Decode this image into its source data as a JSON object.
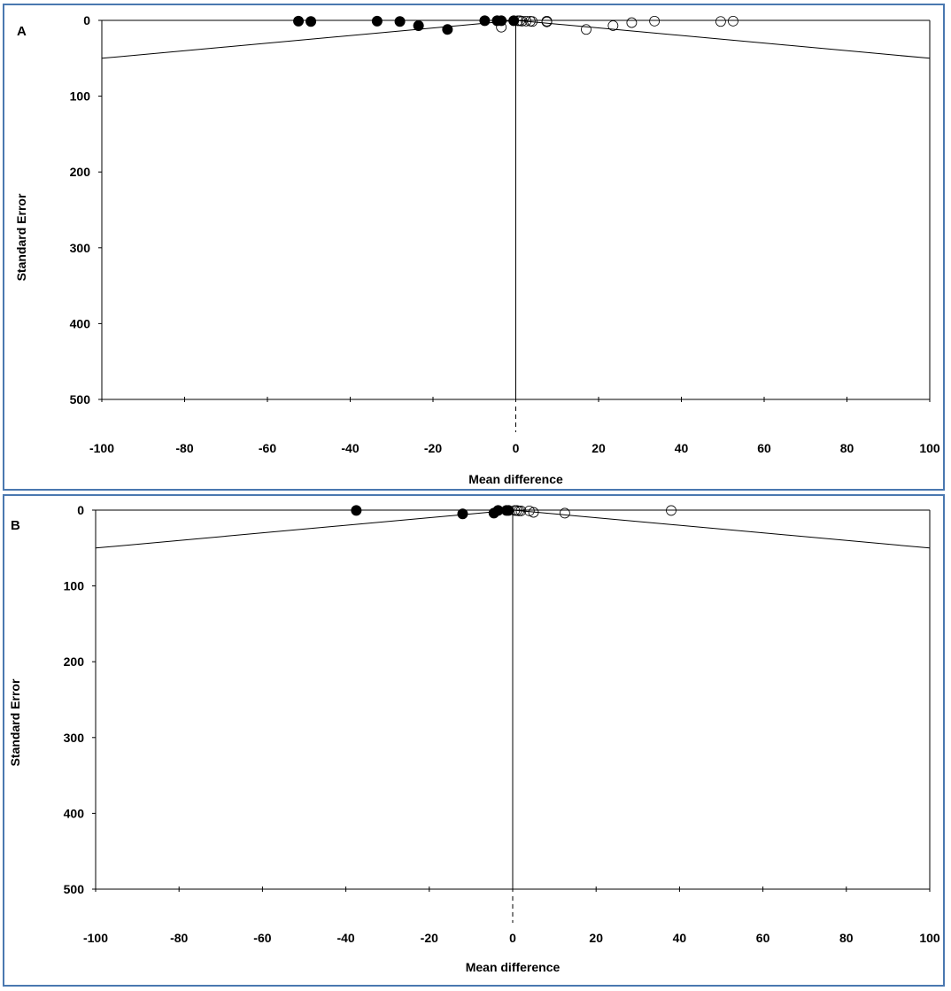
{
  "chart_data": [
    {
      "type": "scatter",
      "panel_label": "A",
      "xlabel": "Mean difference",
      "ylabel": "Standard Error",
      "xlim": [
        -100,
        100
      ],
      "ylim": [
        0,
        500
      ],
      "y_inverted": true,
      "xticks": [
        -100,
        -80,
        -60,
        -40,
        -20,
        0,
        20,
        40,
        60,
        80,
        100
      ],
      "yticks": [
        0,
        100,
        200,
        300,
        400,
        500
      ],
      "grid": false,
      "funnel": {
        "apex": [
          0,
          0
        ],
        "edge_se_at_limits": 50
      },
      "series": [
        {
          "marker": "filled-circle",
          "color": "#000000",
          "points": [
            [
              -52.5,
              1
            ],
            [
              -49.5,
              1.5
            ],
            [
              -33.5,
              1
            ],
            [
              -28,
              1.5
            ],
            [
              -23.5,
              7
            ],
            [
              -16.5,
              12
            ],
            [
              -7.5,
              0.5
            ],
            [
              -4.5,
              0.5
            ],
            [
              -3.5,
              0.5
            ],
            [
              -0.5,
              0.5
            ]
          ]
        },
        {
          "marker": "open-circle",
          "color": "#000000",
          "points": [
            [
              -3.5,
              9
            ],
            [
              0.5,
              0.5
            ],
            [
              1,
              0.5
            ],
            [
              1.5,
              1
            ],
            [
              2.5,
              1
            ],
            [
              3.5,
              1
            ],
            [
              4,
              1.5
            ],
            [
              7.5,
              1
            ],
            [
              7.5,
              2
            ],
            [
              17,
              12
            ],
            [
              23.5,
              7
            ],
            [
              28,
              3
            ],
            [
              33.5,
              1
            ],
            [
              49.5,
              1.5
            ],
            [
              52.5,
              1
            ]
          ]
        }
      ]
    },
    {
      "type": "scatter",
      "panel_label": "B",
      "xlabel": "Mean difference",
      "ylabel": "Standard Error",
      "xlim": [
        -100,
        100
      ],
      "ylim": [
        0,
        500
      ],
      "y_inverted": true,
      "xticks": [
        -100,
        -80,
        -60,
        -40,
        -20,
        0,
        20,
        40,
        60,
        80,
        100
      ],
      "yticks": [
        0,
        100,
        200,
        300,
        400,
        500
      ],
      "grid": false,
      "funnel": {
        "apex": [
          0,
          0
        ],
        "edge_se_at_limits": 50
      },
      "series": [
        {
          "marker": "filled-circle",
          "color": "#000000",
          "points": [
            [
              -37.5,
              0.5
            ],
            [
              -12,
              5
            ],
            [
              -4.5,
              4
            ],
            [
              -3.5,
              0.5
            ],
            [
              -1.5,
              0.5
            ],
            [
              -1,
              0.5
            ]
          ]
        },
        {
          "marker": "open-circle",
          "color": "#000000",
          "points": [
            [
              0.5,
              0.5
            ],
            [
              1,
              0.5
            ],
            [
              1.5,
              1
            ],
            [
              2,
              1
            ],
            [
              4,
              1
            ],
            [
              5,
              3
            ],
            [
              12.5,
              4
            ],
            [
              38,
              0.5
            ]
          ]
        }
      ]
    }
  ]
}
